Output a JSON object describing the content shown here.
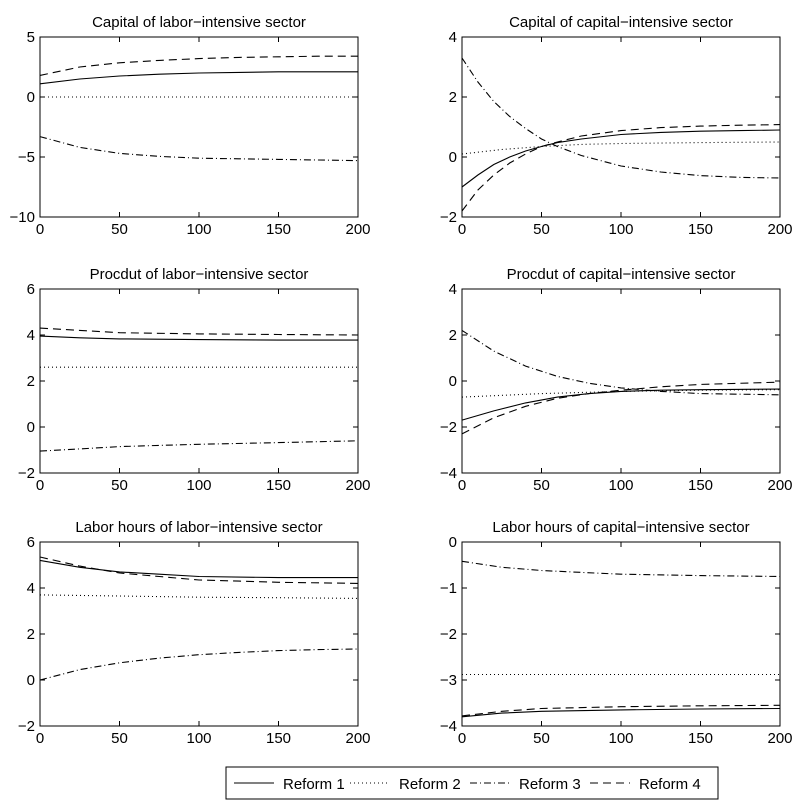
{
  "chart_data": [
    {
      "type": "line",
      "title": "Capital of labor−intensive sector",
      "xlim": [
        0,
        200
      ],
      "ylim": [
        -10,
        5
      ],
      "xticks": [
        "0",
        "50",
        "100",
        "150",
        "200"
      ],
      "yticks": [
        "−10",
        "−5",
        "0",
        "5"
      ],
      "series": [
        {
          "name": "Reform 1",
          "style": "solid",
          "x": [
            0,
            25,
            50,
            75,
            100,
            125,
            150,
            175,
            200
          ],
          "y": [
            1.1,
            1.5,
            1.75,
            1.9,
            2.0,
            2.05,
            2.1,
            2.1,
            2.1
          ]
        },
        {
          "name": "Reform 2",
          "style": "dotted",
          "x": [
            0,
            200
          ],
          "y": [
            0.0,
            0.0
          ]
        },
        {
          "name": "Reform 3",
          "style": "dashdot",
          "x": [
            0,
            25,
            50,
            75,
            100,
            125,
            150,
            175,
            200
          ],
          "y": [
            -3.3,
            -4.2,
            -4.7,
            -4.95,
            -5.1,
            -5.15,
            -5.2,
            -5.25,
            -5.3
          ]
        },
        {
          "name": "Reform 4",
          "style": "dashed",
          "x": [
            0,
            25,
            50,
            75,
            100,
            125,
            150,
            175,
            200
          ],
          "y": [
            1.8,
            2.5,
            2.85,
            3.05,
            3.2,
            3.3,
            3.35,
            3.4,
            3.4
          ]
        }
      ]
    },
    {
      "type": "line",
      "title": "Capital of capital−intensive sector",
      "xlim": [
        0,
        200
      ],
      "ylim": [
        -2,
        4
      ],
      "xticks": [
        "0",
        "50",
        "100",
        "150",
        "200"
      ],
      "yticks": [
        "−2",
        "0",
        "2",
        "4"
      ],
      "series": [
        {
          "name": "Reform 1",
          "style": "solid",
          "x": [
            0,
            10,
            20,
            30,
            40,
            50,
            60,
            75,
            100,
            125,
            150,
            175,
            200
          ],
          "y": [
            -1.0,
            -0.6,
            -0.25,
            0.0,
            0.2,
            0.35,
            0.48,
            0.6,
            0.75,
            0.82,
            0.86,
            0.88,
            0.9
          ]
        },
        {
          "name": "Reform 2",
          "style": "dotted",
          "x": [
            0,
            25,
            50,
            75,
            100,
            150,
            200
          ],
          "y": [
            0.1,
            0.25,
            0.35,
            0.42,
            0.45,
            0.48,
            0.5
          ]
        },
        {
          "name": "Reform 3",
          "style": "dashdot",
          "x": [
            0,
            10,
            20,
            30,
            40,
            50,
            60,
            75,
            100,
            125,
            150,
            175,
            200
          ],
          "y": [
            3.3,
            2.5,
            1.85,
            1.35,
            0.95,
            0.6,
            0.35,
            0.05,
            -0.3,
            -0.5,
            -0.62,
            -0.68,
            -0.7
          ]
        },
        {
          "name": "Reform 4",
          "style": "dashed",
          "x": [
            0,
            10,
            20,
            30,
            40,
            50,
            60,
            75,
            100,
            125,
            150,
            175,
            200
          ],
          "y": [
            -1.8,
            -1.1,
            -0.6,
            -0.2,
            0.1,
            0.35,
            0.5,
            0.7,
            0.88,
            0.98,
            1.03,
            1.06,
            1.08
          ]
        }
      ]
    },
    {
      "type": "line",
      "title": "Procdut of labor−intensive sector",
      "xlim": [
        0,
        200
      ],
      "ylim": [
        -2,
        6
      ],
      "xticks": [
        "0",
        "50",
        "100",
        "150",
        "200"
      ],
      "yticks": [
        "−2",
        "0",
        "2",
        "4",
        "6"
      ],
      "series": [
        {
          "name": "Reform 1",
          "style": "solid",
          "x": [
            0,
            25,
            50,
            100,
            150,
            200
          ],
          "y": [
            3.95,
            3.88,
            3.83,
            3.8,
            3.78,
            3.78
          ]
        },
        {
          "name": "Reform 2",
          "style": "dotted",
          "x": [
            0,
            200
          ],
          "y": [
            2.6,
            2.6
          ]
        },
        {
          "name": "Reform 3",
          "style": "dashdot",
          "x": [
            0,
            25,
            50,
            75,
            100,
            150,
            200
          ],
          "y": [
            -1.05,
            -0.95,
            -0.85,
            -0.8,
            -0.75,
            -0.68,
            -0.6
          ]
        },
        {
          "name": "Reform 4",
          "style": "dashed",
          "x": [
            0,
            25,
            50,
            100,
            150,
            200
          ],
          "y": [
            4.3,
            4.2,
            4.1,
            4.05,
            4.02,
            4.0
          ]
        }
      ]
    },
    {
      "type": "line",
      "title": "Procdut of capital−intensive sector",
      "xlim": [
        0,
        200
      ],
      "ylim": [
        -4,
        4
      ],
      "xticks": [
        "0",
        "50",
        "100",
        "150",
        "200"
      ],
      "yticks": [
        "−4",
        "−2",
        "0",
        "2",
        "4"
      ],
      "series": [
        {
          "name": "Reform 1",
          "style": "solid",
          "x": [
            0,
            20,
            40,
            60,
            80,
            100,
            125,
            150,
            200
          ],
          "y": [
            -1.7,
            -1.3,
            -0.95,
            -0.7,
            -0.55,
            -0.45,
            -0.4,
            -0.38,
            -0.35
          ]
        },
        {
          "name": "Reform 2",
          "style": "dotted",
          "x": [
            0,
            50,
            100,
            150,
            200
          ],
          "y": [
            -0.7,
            -0.55,
            -0.45,
            -0.4,
            -0.38
          ]
        },
        {
          "name": "Reform 3",
          "style": "dashdot",
          "x": [
            0,
            20,
            40,
            60,
            80,
            100,
            125,
            150,
            200
          ],
          "y": [
            2.2,
            1.3,
            0.65,
            0.2,
            -0.1,
            -0.3,
            -0.45,
            -0.55,
            -0.6
          ]
        },
        {
          "name": "Reform 4",
          "style": "dashed",
          "x": [
            0,
            20,
            40,
            60,
            80,
            100,
            125,
            150,
            200
          ],
          "y": [
            -2.3,
            -1.6,
            -1.1,
            -0.75,
            -0.55,
            -0.4,
            -0.25,
            -0.15,
            -0.05
          ]
        }
      ]
    },
    {
      "type": "line",
      "title": "Labor hours of labor−intensive sector",
      "xlim": [
        0,
        200
      ],
      "ylim": [
        -2,
        6
      ],
      "xticks": [
        "0",
        "50",
        "100",
        "150",
        "200"
      ],
      "yticks": [
        "−2",
        "0",
        "2",
        "4",
        "6"
      ],
      "series": [
        {
          "name": "Reform 1",
          "style": "solid",
          "x": [
            0,
            25,
            50,
            75,
            100,
            150,
            200
          ],
          "y": [
            5.2,
            4.9,
            4.7,
            4.6,
            4.5,
            4.45,
            4.45
          ]
        },
        {
          "name": "Reform 2",
          "style": "dotted",
          "x": [
            0,
            50,
            100,
            150,
            200
          ],
          "y": [
            3.7,
            3.65,
            3.6,
            3.58,
            3.55
          ]
        },
        {
          "name": "Reform 3",
          "style": "dashdot",
          "x": [
            0,
            25,
            50,
            75,
            100,
            125,
            150,
            175,
            200
          ],
          "y": [
            0.0,
            0.45,
            0.75,
            0.95,
            1.1,
            1.2,
            1.28,
            1.32,
            1.35
          ]
        },
        {
          "name": "Reform 4",
          "style": "dashed",
          "x": [
            0,
            25,
            50,
            75,
            100,
            125,
            150,
            200
          ],
          "y": [
            5.35,
            4.95,
            4.65,
            4.5,
            4.35,
            4.3,
            4.25,
            4.2
          ]
        }
      ]
    },
    {
      "type": "line",
      "title": "Labor hours of capital−intensive sector",
      "xlim": [
        0,
        200
      ],
      "ylim": [
        -4,
        0
      ],
      "xticks": [
        "0",
        "50",
        "100",
        "150",
        "200"
      ],
      "yticks": [
        "−4",
        "−3",
        "−2",
        "−1",
        "0"
      ],
      "series": [
        {
          "name": "Reform 1",
          "style": "solid",
          "x": [
            0,
            25,
            50,
            100,
            150,
            200
          ],
          "y": [
            -3.8,
            -3.72,
            -3.68,
            -3.65,
            -3.63,
            -3.62
          ]
        },
        {
          "name": "Reform 2",
          "style": "dotted",
          "x": [
            0,
            200
          ],
          "y": [
            -2.88,
            -2.88
          ]
        },
        {
          "name": "Reform 3",
          "style": "dashdot",
          "x": [
            0,
            25,
            50,
            75,
            100,
            150,
            200
          ],
          "y": [
            -0.42,
            -0.55,
            -0.62,
            -0.66,
            -0.7,
            -0.73,
            -0.75
          ]
        },
        {
          "name": "Reform 4",
          "style": "dashed",
          "x": [
            0,
            25,
            50,
            100,
            150,
            200
          ],
          "y": [
            -3.78,
            -3.68,
            -3.62,
            -3.58,
            -3.56,
            -3.55
          ]
        }
      ]
    }
  ],
  "legend": {
    "placement": "bottom-center",
    "items": [
      {
        "label": "Reform 1",
        "style": "solid"
      },
      {
        "label": "Reform 2",
        "style": "dotted"
      },
      {
        "label": "Reform 3",
        "style": "dashdot"
      },
      {
        "label": "Reform 4",
        "style": "dashed"
      }
    ]
  }
}
